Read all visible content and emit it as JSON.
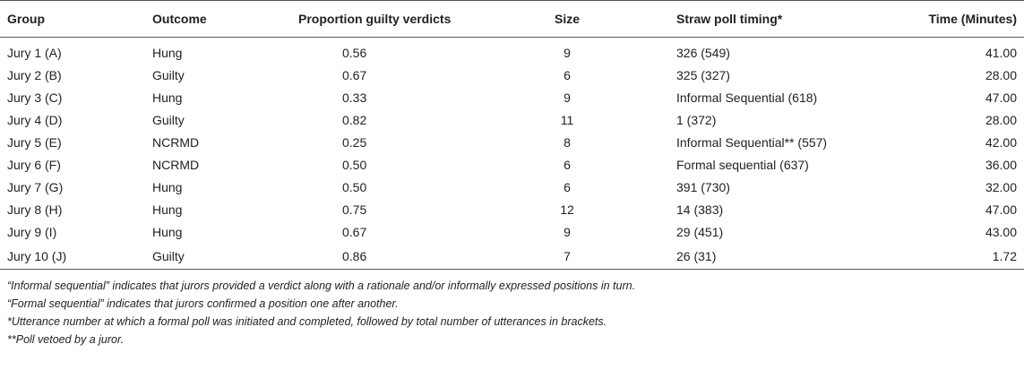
{
  "table": {
    "columns": [
      "Group",
      "Outcome",
      "Proportion guilty verdicts",
      "Size",
      "Straw poll timing*",
      "Time (Minutes)"
    ],
    "rows": [
      [
        "Jury 1 (A)",
        "Hung",
        "0.56",
        "9",
        "326 (549)",
        "41.00"
      ],
      [
        "Jury 2 (B)",
        "Guilty",
        "0.67",
        "6",
        "325 (327)",
        "28.00"
      ],
      [
        "Jury 3 (C)",
        "Hung",
        "0.33",
        "9",
        "Informal Sequential (618)",
        "47.00"
      ],
      [
        "Jury 4 (D)",
        "Guilty",
        "0.82",
        "11",
        "1 (372)",
        "28.00"
      ],
      [
        "Jury 5 (E)",
        "NCRMD",
        "0.25",
        "8",
        "Informal Sequential** (557)",
        "42.00"
      ],
      [
        "Jury 6 (F)",
        "NCRMD",
        "0.50",
        "6",
        "Formal sequential (637)",
        "36.00"
      ],
      [
        "Jury 7 (G)",
        "Hung",
        "0.50",
        "6",
        "391 (730)",
        "32.00"
      ],
      [
        "Jury 8 (H)",
        "Hung",
        "0.75",
        "12",
        "14 (383)",
        "47.00"
      ],
      [
        "Jury 9 (I)",
        "Hung",
        "0.67",
        "9",
        "29 (451)",
        "43.00"
      ],
      [
        "Jury 10 (J)",
        "Guilty",
        "0.86",
        "7",
        "26 (31)",
        "1.72"
      ]
    ]
  },
  "notes": [
    "“Informal sequential” indicates that jurors provided a verdict along with a rationale and/or informally expressed positions in turn.",
    "“Formal sequential” indicates that jurors confirmed a position one after another.",
    "*Utterance number at which a formal poll was initiated and completed, followed by total number of utterances in brackets.",
    "**Poll vetoed by a juror."
  ]
}
